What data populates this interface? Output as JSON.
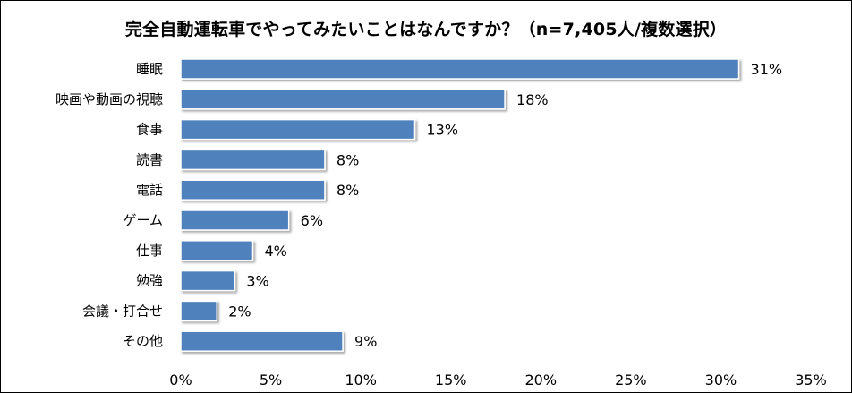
{
  "chart_data": {
    "type": "bar",
    "orientation": "horizontal",
    "title": "完全自動運転車でやってみたいことはなんですか？（n=7,405人/複数選択）",
    "categories": [
      "睡眠",
      "映画や動画の視聴",
      "食事",
      "読書",
      "電話",
      "ゲーム",
      "仕事",
      "勉強",
      "会議・打合せ",
      "その他"
    ],
    "values": [
      31,
      18,
      13,
      8,
      8,
      6,
      4,
      3,
      2,
      9
    ],
    "value_labels": [
      "31%",
      "18%",
      "13%",
      "8%",
      "8%",
      "6%",
      "4%",
      "3%",
      "2%",
      "9%"
    ],
    "xlim": [
      0,
      35
    ],
    "xticks": [
      0,
      5,
      10,
      15,
      20,
      25,
      30,
      35
    ],
    "xtick_labels": [
      "0%",
      "5%",
      "10%",
      "15%",
      "20%",
      "25%",
      "30%",
      "35%"
    ],
    "bar_color": "#4F81BD",
    "grid": false,
    "legend": "none"
  }
}
